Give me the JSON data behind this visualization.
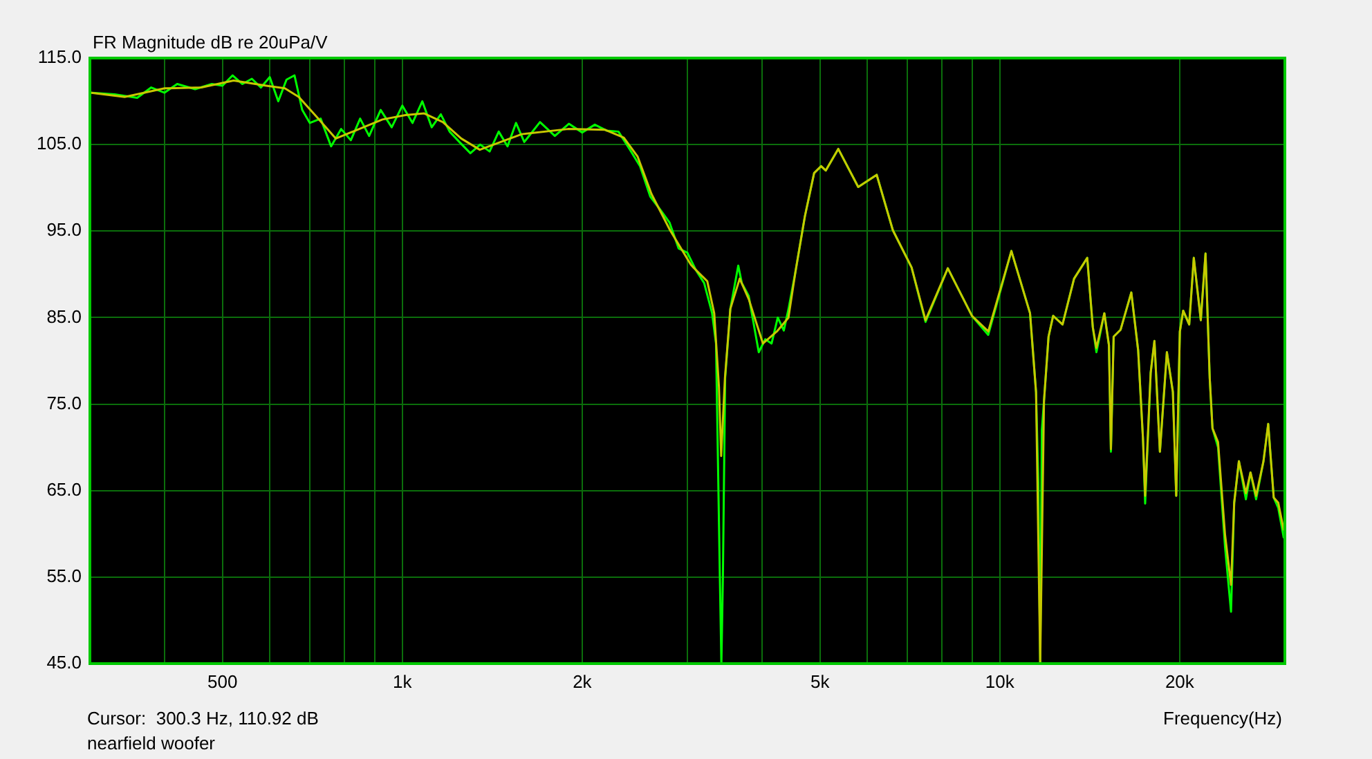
{
  "chart_data": {
    "type": "line",
    "title": "FR Magnitude dB re 20uPa/V",
    "xlabel": "Frequency(Hz)",
    "annotations": [
      "Cursor:  300.3 Hz, 110.92 dB",
      "nearfield woofer"
    ],
    "log": "x",
    "grid": true,
    "legend": false,
    "xlim": [
      300,
      30000
    ],
    "xticks": [
      {
        "value": 300,
        "label": null
      },
      {
        "value": 400,
        "label": null
      },
      500,
      {
        "value": 600,
        "label": null
      },
      {
        "value": 700,
        "label": null
      },
      {
        "value": 800,
        "label": null
      },
      {
        "value": 900,
        "label": null
      },
      {
        "value": 1000,
        "label": "1k"
      },
      {
        "value": 2000,
        "label": "2k"
      },
      {
        "value": 3000,
        "label": null
      },
      {
        "value": 4000,
        "label": null
      },
      {
        "value": 5000,
        "label": "5k"
      },
      {
        "value": 6000,
        "label": null
      },
      {
        "value": 7000,
        "label": null
      },
      {
        "value": 8000,
        "label": null
      },
      {
        "value": 9000,
        "label": null
      },
      {
        "value": 10000,
        "label": "10k"
      },
      {
        "value": 20000,
        "label": "20k"
      },
      {
        "value": 30000,
        "label": null
      }
    ],
    "ylim": [
      45,
      115
    ],
    "yticks": [
      {
        "value": 45,
        "label": "45.0"
      },
      {
        "value": 55,
        "label": "55.0"
      },
      {
        "value": 65,
        "label": "65.0"
      },
      {
        "value": 75,
        "label": "75.0"
      },
      {
        "value": 85,
        "label": "85.0"
      },
      {
        "value": 95,
        "label": "95.0"
      },
      {
        "value": 105,
        "label": "105.0"
      },
      {
        "value": 115,
        "label": "115.0"
      }
    ],
    "series": [
      {
        "color": "#c8c800",
        "x": [
          300,
          343,
          400,
          461,
          522,
          592,
          636,
          671,
          721,
          774,
          847,
          926,
          1012,
          1088,
          1169,
          1255,
          1348,
          1448,
          1584,
          1894,
          2186,
          2348,
          2477,
          2612,
          2806,
          3041,
          3070,
          3239,
          3327,
          3388,
          3417,
          3467,
          3540,
          3670,
          3802,
          4014,
          4236,
          4429,
          4550,
          4718,
          4889,
          5023,
          5113,
          5366,
          5795,
          6223,
          6622,
          7118,
          7511,
          8185,
          8982,
          9565,
          10457,
          11236,
          11499,
          11685,
          11858,
          12067,
          12283,
          12735,
          13314,
          14007,
          14310,
          14512,
          14962,
          15230,
          15346,
          15508,
          15930,
          16600,
          17045,
          17361,
          17510,
          17886,
          18148,
          18535,
          19040,
          19484,
          19737,
          20016,
          20275,
          20749,
          21121,
          21698,
          22097,
          22457,
          22698,
          23190,
          23823,
          24378,
          24678,
          25130,
          25816,
          26279,
          26853,
          27627,
          28134,
          28737,
          29245,
          29880
        ],
        "values": [
          111.0,
          110.5,
          111.5,
          111.6,
          112.4,
          111.8,
          111.5,
          110.5,
          108.1,
          105.7,
          106.8,
          107.9,
          108.4,
          108.6,
          107.6,
          105.7,
          104.4,
          105.2,
          106.2,
          106.8,
          106.7,
          105.8,
          103.6,
          99.3,
          95.1,
          91.1,
          90.8,
          89.2,
          85.5,
          77.0,
          69.0,
          78.0,
          86.0,
          89.5,
          87.1,
          82.0,
          83.4,
          85.0,
          90.3,
          96.7,
          101.7,
          102.5,
          102.0,
          104.5,
          100.1,
          101.5,
          95.1,
          90.8,
          84.7,
          90.7,
          85.2,
          83.4,
          92.7,
          85.5,
          76.4,
          45.0,
          75.4,
          82.8,
          85.2,
          84.2,
          89.5,
          91.9,
          83.9,
          81.5,
          85.5,
          81.8,
          69.8,
          82.8,
          83.6,
          87.9,
          81.2,
          71.1,
          64.4,
          78.6,
          82.3,
          69.5,
          81.0,
          76.4,
          64.4,
          83.4,
          85.8,
          84.2,
          91.9,
          84.7,
          92.4,
          78.0,
          72.2,
          70.6,
          59.9,
          54.1,
          63.6,
          68.4,
          64.7,
          67.1,
          64.4,
          68.4,
          72.7,
          64.2,
          63.6,
          60.4
        ]
      },
      {
        "color": "#00ff00",
        "x": [
          300,
          330,
          360,
          380,
          400,
          420,
          450,
          480,
          500,
          520,
          540,
          560,
          580,
          600,
          620,
          640,
          660,
          680,
          700,
          730,
          760,
          790,
          820,
          850,
          880,
          920,
          960,
          1000,
          1040,
          1080,
          1120,
          1160,
          1200,
          1250,
          1300,
          1350,
          1400,
          1450,
          1500,
          1550,
          1600,
          1700,
          1800,
          1900,
          2000,
          2100,
          2200,
          2300,
          2400,
          2500,
          2600,
          2700,
          2800,
          2900,
          3000,
          3100,
          3200,
          3300,
          3350,
          3400,
          3420,
          3440,
          3470,
          3540,
          3650,
          3700,
          3800,
          3950,
          4050,
          4150,
          4250,
          4350,
          4430,
          4550,
          4718,
          4889,
          5023,
          5113,
          5366,
          5795,
          6223,
          6622,
          7118,
          7511,
          8185,
          8982,
          9565,
          10457,
          11236,
          11499,
          11600,
          11685,
          11760,
          11858,
          12067,
          12283,
          12735,
          13314,
          14007,
          14310,
          14512,
          14962,
          15230,
          15346,
          15508,
          15930,
          16600,
          17045,
          17361,
          17510,
          17886,
          18148,
          18535,
          19040,
          19484,
          19737,
          20016,
          20275,
          20749,
          21121,
          21698,
          22097,
          22457,
          22698,
          23190,
          23823,
          24378,
          24678,
          25130,
          25816,
          26279,
          26853,
          27627,
          28134,
          28737,
          29245,
          29880
        ],
        "values": [
          111.0,
          110.8,
          110.4,
          111.6,
          111.0,
          112.0,
          111.4,
          112.0,
          111.8,
          113.0,
          112.0,
          112.6,
          111.6,
          112.8,
          110.0,
          112.5,
          113.0,
          109.0,
          107.5,
          108.0,
          104.8,
          106.8,
          105.5,
          108.0,
          106.0,
          109.0,
          107.0,
          109.5,
          107.5,
          110.0,
          107.0,
          108.5,
          106.5,
          105.2,
          104.0,
          105.0,
          104.2,
          106.5,
          104.8,
          107.5,
          105.3,
          107.6,
          106.0,
          107.4,
          106.4,
          107.3,
          106.6,
          106.5,
          104.5,
          102.5,
          99.0,
          97.5,
          96.0,
          93.0,
          92.5,
          90.5,
          89.0,
          85.5,
          82.0,
          55.0,
          45.0,
          55.0,
          78.0,
          86.0,
          91.0,
          89.0,
          87.5,
          81.0,
          82.5,
          82.0,
          85.0,
          83.5,
          86.0,
          90.3,
          96.7,
          101.7,
          102.5,
          102.0,
          104.5,
          100.1,
          101.5,
          95.1,
          90.8,
          84.5,
          90.7,
          85.2,
          83.0,
          92.7,
          85.5,
          76.4,
          66.0,
          45.0,
          72.0,
          75.4,
          82.8,
          85.2,
          84.2,
          89.5,
          91.9,
          83.9,
          81.0,
          85.5,
          81.8,
          69.5,
          82.8,
          83.6,
          87.9,
          81.2,
          71.1,
          63.5,
          78.6,
          82.3,
          69.5,
          81.0,
          76.4,
          64.4,
          83.4,
          85.8,
          84.2,
          91.9,
          84.7,
          92.4,
          78.0,
          72.2,
          70.0,
          58.5,
          51.0,
          63.6,
          68.4,
          64.0,
          67.1,
          64.0,
          68.4,
          72.7,
          64.2,
          63.0,
          59.5
        ]
      }
    ]
  }
}
